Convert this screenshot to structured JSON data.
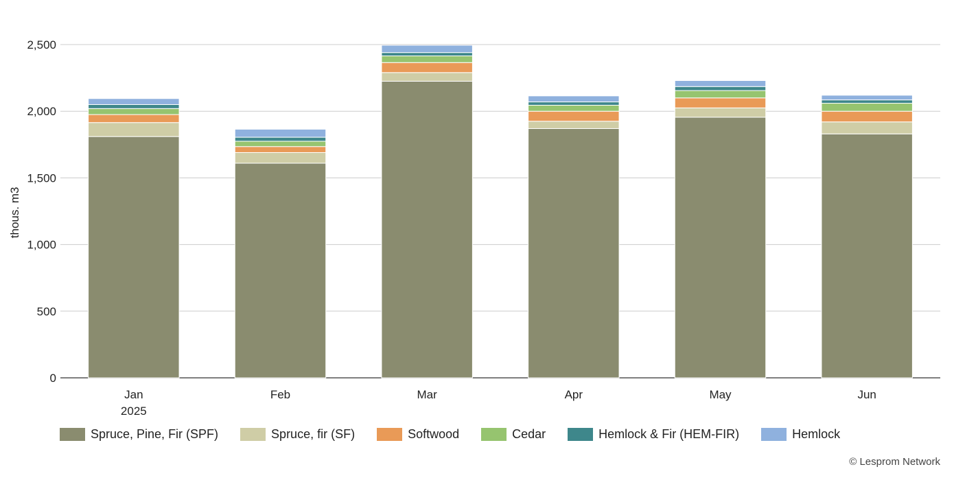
{
  "chart_data": {
    "type": "bar",
    "stacked": true,
    "categories": [
      "Jan",
      "Feb",
      "Mar",
      "Apr",
      "May",
      "Jun"
    ],
    "category_sublabels": [
      "2025",
      "",
      "",
      "",
      "",
      ""
    ],
    "ylabel": "thous. m3",
    "ylim": [
      0,
      2500
    ],
    "yticks": [
      0,
      500,
      1000,
      1500,
      2000,
      2500
    ],
    "ytick_labels": [
      "0",
      "500",
      "1,000",
      "1,500",
      "2,000",
      "2,500"
    ],
    "grid": true,
    "legend_position": "bottom",
    "series": [
      {
        "name": "Spruce, Pine, Fir (SPF)",
        "color": "#8a8c6f",
        "values": [
          1810,
          1610,
          2225,
          1870,
          1955,
          1830
        ]
      },
      {
        "name": "Spruce, fir (SF)",
        "color": "#cfcda6",
        "values": [
          105,
          80,
          65,
          55,
          70,
          90
        ]
      },
      {
        "name": "Softwood",
        "color": "#e99a57",
        "values": [
          60,
          45,
          75,
          75,
          75,
          80
        ]
      },
      {
        "name": "Cedar",
        "color": "#96c46f",
        "values": [
          45,
          40,
          50,
          45,
          55,
          60
        ]
      },
      {
        "name": "Hemlock & Fir (HEM-FIR)",
        "color": "#3e878b",
        "values": [
          30,
          30,
          25,
          25,
          30,
          25
        ]
      },
      {
        "name": "Hemlock",
        "color": "#8fb1de",
        "values": [
          45,
          60,
          55,
          45,
          45,
          35
        ]
      }
    ]
  },
  "credit": "© Lesprom Network"
}
